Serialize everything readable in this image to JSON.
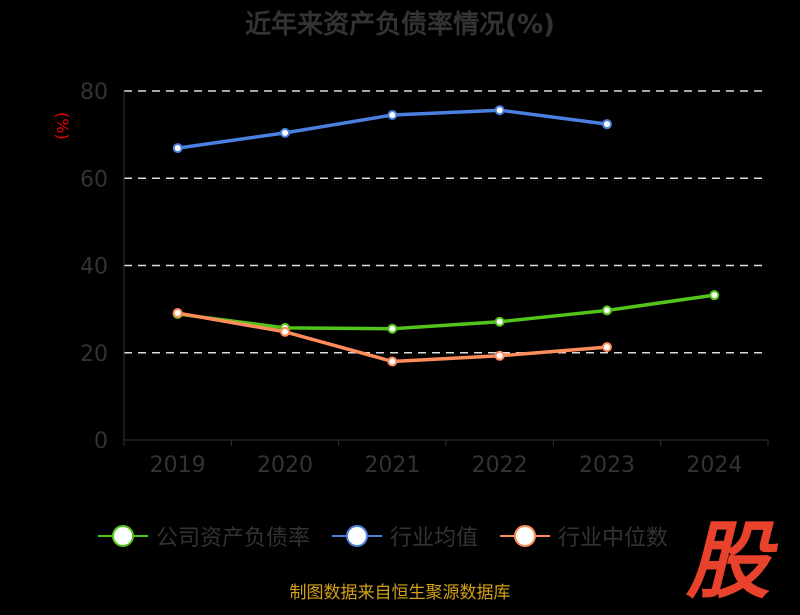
{
  "chart_data": {
    "type": "line",
    "title": "近年来资产负债率情况(%)",
    "ylabel": "(%)",
    "ylim": [
      0,
      80
    ],
    "yticks": [
      0,
      20,
      40,
      60,
      80
    ],
    "categories": [
      "2019",
      "2020",
      "2021",
      "2022",
      "2023",
      "2024"
    ],
    "grid": true,
    "legend_position": "bottom",
    "series": [
      {
        "name": "公司资产负债率",
        "color": "#52c41a",
        "values": [
          28.9,
          25.7,
          25.5,
          27.1,
          29.7,
          33.2
        ]
      },
      {
        "name": "行业均值",
        "color": "#4a80e0",
        "values": [
          66.9,
          70.4,
          74.5,
          75.6,
          72.4,
          null
        ]
      },
      {
        "name": "行业中位数",
        "color": "#ff8c5a",
        "values": [
          29.1,
          24.8,
          18.0,
          19.3,
          21.3,
          null
        ]
      }
    ]
  },
  "source": "制图数据来自恒生聚源数据库",
  "watermark": "股"
}
